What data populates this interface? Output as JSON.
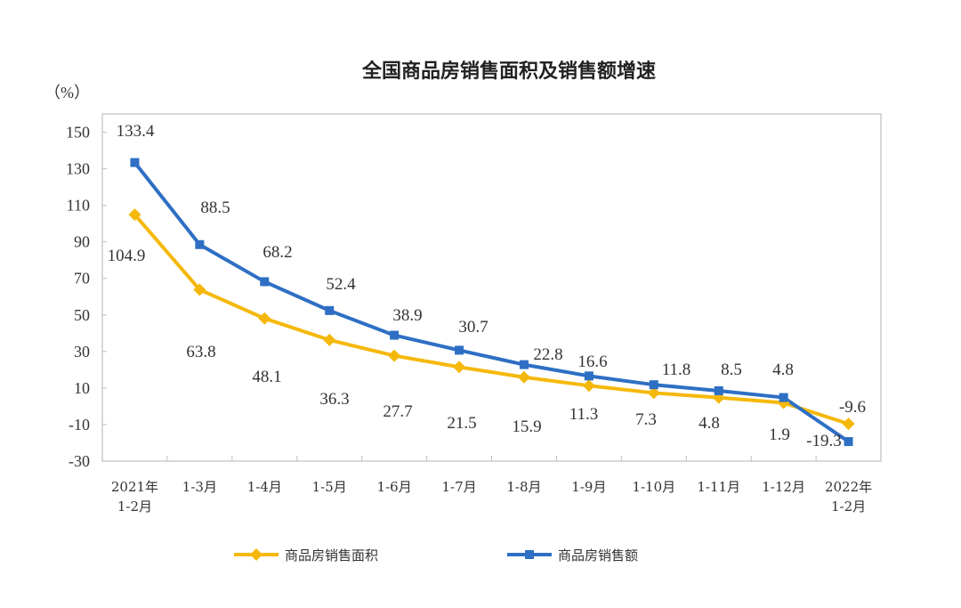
{
  "chart_data": {
    "type": "line",
    "title": "全国商品房销售面积及销售额增速",
    "ylabel": "（%）",
    "xlabel": "",
    "categories": [
      "2021年\n1-2月",
      "1-3月",
      "1-4月",
      "1-5月",
      "1-6月",
      "1-7月",
      "1-8月",
      "1-9月",
      "1-10月",
      "1-11月",
      "1-12月",
      "2022年\n1-2月"
    ],
    "ylim": [
      -30,
      160
    ],
    "yticks": [
      150,
      130,
      110,
      90,
      70,
      50,
      30,
      10,
      -10,
      -30
    ],
    "grid": false,
    "legend": "bottom",
    "series": [
      {
        "name": "商品房销售面积",
        "color": "#F5B80A",
        "marker": "diamond",
        "values": [
          104.9,
          63.8,
          48.1,
          36.3,
          27.7,
          21.5,
          15.9,
          11.3,
          7.3,
          4.8,
          1.9,
          -9.6
        ]
      },
      {
        "name": "商品房销售额",
        "color": "#2E6FC4",
        "marker": "square",
        "values": [
          133.4,
          88.5,
          68.2,
          52.4,
          38.9,
          30.7,
          22.8,
          16.6,
          11.8,
          8.5,
          4.8,
          -19.3
        ]
      }
    ]
  }
}
